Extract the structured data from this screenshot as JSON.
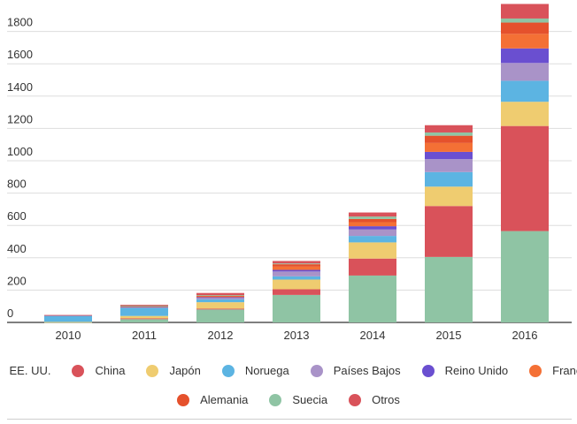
{
  "colors": {
    "EE. UU.": "#8fc4a4",
    "China": "#d9525a",
    "Japón": "#efcc70",
    "Noruega": "#5cb4e2",
    "Países Bajos": "#a993c8",
    "Reino Unido": "#6a4fd0",
    "Francia": "#f47035",
    "Alemania": "#e5512c",
    "Suecia": "#8fc4a4",
    "Otros": "#d9525a"
  },
  "chart_data": {
    "type": "bar",
    "stacked": true,
    "categories": [
      "2010",
      "2011",
      "2012",
      "2013",
      "2014",
      "2015",
      "2016"
    ],
    "ylim": [
      0,
      1900
    ],
    "yticks": [
      0,
      200,
      400,
      600,
      800,
      1000,
      1200,
      1400,
      1600,
      1800
    ],
    "grid": true,
    "legend_position": "bottom",
    "series": [
      {
        "name": "EE. UU.",
        "values": [
          2,
          20,
          80,
          170,
          290,
          405,
          565
        ]
      },
      {
        "name": "China",
        "values": [
          0,
          5,
          5,
          35,
          105,
          315,
          650
        ]
      },
      {
        "name": "Japón",
        "values": [
          1,
          15,
          40,
          60,
          100,
          120,
          150
        ]
      },
      {
        "name": "Noruega",
        "values": [
          40,
          50,
          18,
          20,
          40,
          90,
          130
        ]
      },
      {
        "name": "Países Bajos",
        "values": [
          1,
          5,
          10,
          30,
          40,
          80,
          110
        ]
      },
      {
        "name": "Reino Unido",
        "values": [
          0,
          3,
          3,
          10,
          20,
          45,
          90
        ]
      },
      {
        "name": "Francia",
        "values": [
          0,
          2,
          5,
          20,
          25,
          55,
          90
        ]
      },
      {
        "name": "Alemania",
        "values": [
          0,
          2,
          5,
          15,
          20,
          45,
          70
        ]
      },
      {
        "name": "Suecia",
        "values": [
          0,
          2,
          3,
          5,
          15,
          20,
          25
        ]
      },
      {
        "name": "Otros",
        "values": [
          2,
          5,
          13,
          15,
          25,
          45,
          90
        ]
      }
    ]
  },
  "legend": {
    "row1": [
      "EE. UU.",
      "China",
      "Japón",
      "Noruega",
      "Países Bajos",
      "Reino Unido",
      "Francia"
    ],
    "row2": [
      "Alemania",
      "Suecia",
      "Otros"
    ]
  }
}
